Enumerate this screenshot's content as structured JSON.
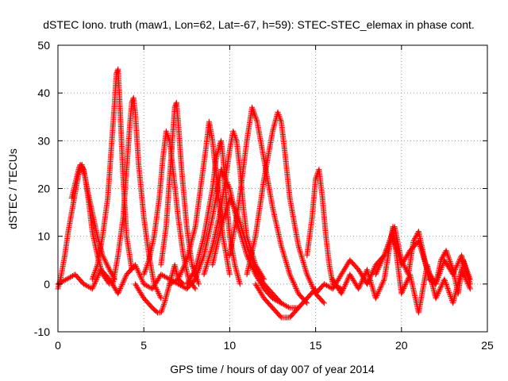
{
  "chart_data": {
    "type": "scatter",
    "title": "dSTEC Iono. truth (maw1, Lon=62, Lat=-67, h=59): STEC-STEC_elemax in phase cont.",
    "xlabel": "GPS time / hours of day 007 of year 2014",
    "ylabel": "dSTEC  / TECUs",
    "xlim": [
      0,
      25
    ],
    "ylim": [
      -10,
      50
    ],
    "x_ticks": [
      0,
      5,
      10,
      15,
      20,
      25
    ],
    "y_ticks": [
      -10,
      0,
      10,
      20,
      30,
      40,
      50
    ],
    "x_tick_labels": [
      "0",
      "5",
      "10",
      "15",
      "20",
      "25"
    ],
    "y_tick_labels": [
      "-10",
      "0",
      "10",
      "20",
      "30",
      "40",
      "50"
    ],
    "grid": true,
    "marker": "+",
    "series_color": "#ff0000",
    "series": [
      {
        "x": [
          0.0,
          0.2,
          0.4,
          0.6,
          0.8,
          1.0,
          1.2,
          1.4,
          1.6,
          1.8,
          2.0,
          2.3,
          2.6,
          3.0
        ],
        "y": [
          -1,
          2,
          6,
          11,
          15,
          19,
          23,
          25,
          22,
          17,
          11,
          6,
          2,
          0
        ]
      },
      {
        "x": [
          0.8,
          1.0,
          1.2,
          1.3,
          1.5,
          1.7,
          2.0,
          2.3,
          2.6,
          3.0,
          3.3
        ],
        "y": [
          18,
          21,
          24,
          25,
          24,
          20,
          15,
          10,
          6,
          3,
          1
        ]
      },
      {
        "x": [
          2.0,
          2.3,
          2.6,
          2.9,
          3.1,
          3.3,
          3.4,
          3.5,
          3.6,
          3.8,
          4.0,
          4.3
        ],
        "y": [
          1,
          4,
          10,
          18,
          28,
          38,
          44,
          45,
          38,
          22,
          10,
          3
        ]
      },
      {
        "x": [
          3.2,
          3.5,
          3.8,
          4.0,
          4.2,
          4.3,
          4.4,
          4.5,
          4.7,
          5.0,
          5.3,
          5.6,
          6.0
        ],
        "y": [
          0,
          6,
          14,
          24,
          34,
          38,
          39,
          36,
          25,
          14,
          6,
          0,
          -3
        ]
      },
      {
        "x": [
          4.5,
          5.0,
          5.5,
          5.8,
          6.0,
          6.2,
          6.5,
          6.8,
          7.0,
          7.3
        ],
        "y": [
          0,
          -3,
          -5,
          -6,
          -6,
          -4,
          0,
          4,
          1,
          0
        ]
      },
      {
        "x": [
          5.0,
          5.3,
          5.6,
          5.9,
          6.1,
          6.3,
          6.5,
          6.7,
          7.0,
          7.3,
          7.6,
          8.0
        ],
        "y": [
          2,
          5,
          10,
          18,
          26,
          32,
          30,
          24,
          14,
          6,
          1,
          -1
        ]
      },
      {
        "x": [
          6.0,
          6.3,
          6.5,
          6.7,
          6.8,
          6.9,
          7.0,
          7.2,
          7.5,
          7.8,
          8.2
        ],
        "y": [
          4,
          12,
          22,
          32,
          37,
          38,
          34,
          24,
          12,
          4,
          0
        ]
      },
      {
        "x": [
          6.5,
          7.0,
          7.5,
          8.0,
          8.3,
          8.6,
          8.8,
          9.0,
          9.3,
          9.6,
          10.0
        ],
        "y": [
          0,
          1,
          5,
          12,
          20,
          28,
          34,
          30,
          20,
          10,
          2
        ]
      },
      {
        "x": [
          7.5,
          8.0,
          8.5,
          9.0,
          9.2,
          9.4,
          9.5,
          9.6,
          9.8,
          10.0,
          10.3,
          10.6
        ],
        "y": [
          0,
          3,
          10,
          20,
          26,
          29,
          30,
          27,
          18,
          10,
          4,
          0
        ]
      },
      {
        "x": [
          8.0,
          8.5,
          9.0,
          9.5,
          10.0,
          10.5,
          11.0,
          11.5,
          12.0,
          12.5,
          13.0
        ],
        "y": [
          1,
          6,
          14,
          24,
          20,
          12,
          6,
          2,
          -1,
          -3,
          -4
        ]
      },
      {
        "x": [
          8.5,
          9.0,
          9.5,
          10.0,
          10.2,
          10.4,
          10.6,
          10.8,
          11.0,
          11.5,
          12.0
        ],
        "y": [
          2,
          8,
          16,
          28,
          32,
          30,
          24,
          16,
          10,
          4,
          1
        ]
      },
      {
        "x": [
          9.0,
          9.5,
          10.0,
          10.5,
          11.0,
          11.5,
          12.0,
          12.5,
          13.0,
          13.5,
          14.0
        ],
        "y": [
          4,
          12,
          18,
          14,
          8,
          3,
          0,
          -2,
          -4,
          -5,
          -5
        ]
      },
      {
        "x": [
          10.0,
          10.5,
          11.0,
          11.3,
          11.6,
          12.0,
          12.5,
          13.0,
          13.5,
          14.0,
          14.5
        ],
        "y": [
          6,
          16,
          30,
          37,
          34,
          26,
          16,
          8,
          2,
          -2,
          -4
        ]
      },
      {
        "x": [
          11.0,
          11.5,
          12.0,
          12.5,
          12.8,
          13.0,
          13.2,
          13.5,
          14.0,
          14.5,
          15.0,
          15.5
        ],
        "y": [
          2,
          10,
          22,
          32,
          36,
          34,
          28,
          18,
          8,
          2,
          -2,
          -4
        ]
      },
      {
        "x": [
          11.5,
          12.0,
          12.5,
          13.0,
          13.5,
          14.0,
          14.5,
          15.0
        ],
        "y": [
          0,
          -3,
          -5,
          -7,
          -7,
          -5,
          -3,
          -1
        ]
      },
      {
        "x": [
          14.5,
          14.8,
          15.0,
          15.2,
          15.4,
          15.6,
          15.8,
          16.0,
          16.5
        ],
        "y": [
          6,
          14,
          22,
          24,
          18,
          10,
          4,
          0,
          -1
        ]
      },
      {
        "x": [
          0.0,
          0.5,
          1.0,
          1.5,
          2.0,
          2.5,
          3.0,
          3.5,
          4.0,
          4.5,
          5.0,
          5.5,
          6.0,
          6.5,
          7.0,
          7.5,
          8.0
        ],
        "y": [
          0,
          1,
          2,
          0,
          -1,
          3,
          1,
          -2,
          2,
          4,
          0,
          -1,
          2,
          1,
          0,
          -1,
          1
        ]
      },
      {
        "x": [
          15.0,
          15.5,
          16.0,
          16.5,
          17.0,
          17.5,
          18.0,
          18.5,
          19.0,
          19.5,
          20.0,
          20.5,
          21.0,
          21.5,
          22.0,
          22.5,
          23.0,
          23.5,
          24.0
        ],
        "y": [
          -2,
          0,
          -1,
          2,
          5,
          3,
          0,
          4,
          6,
          10,
          4,
          7,
          9,
          3,
          0,
          5,
          2,
          6,
          0
        ]
      },
      {
        "x": [
          16.0,
          16.5,
          17.0,
          17.5,
          18.0,
          18.5,
          19.0,
          19.5,
          20.0,
          20.5,
          21.0,
          21.5,
          22.0,
          22.5,
          23.0,
          23.5,
          24.0
        ],
        "y": [
          1,
          -2,
          2,
          -1,
          3,
          -3,
          1,
          12,
          -2,
          2,
          -6,
          4,
          -3,
          1,
          -4,
          3,
          -1
        ]
      },
      {
        "x": [
          18.5,
          19.0,
          19.3,
          19.6,
          20.0,
          20.4,
          20.7,
          21.0,
          21.3,
          21.6,
          22.0
        ],
        "y": [
          2,
          6,
          9,
          12,
          5,
          2,
          9,
          11,
          6,
          1,
          0
        ]
      },
      {
        "x": [
          22.0,
          22.3,
          22.6,
          23.0,
          23.3,
          23.6,
          24.0
        ],
        "y": [
          0,
          5,
          7,
          3,
          -2,
          5,
          1
        ]
      }
    ]
  }
}
